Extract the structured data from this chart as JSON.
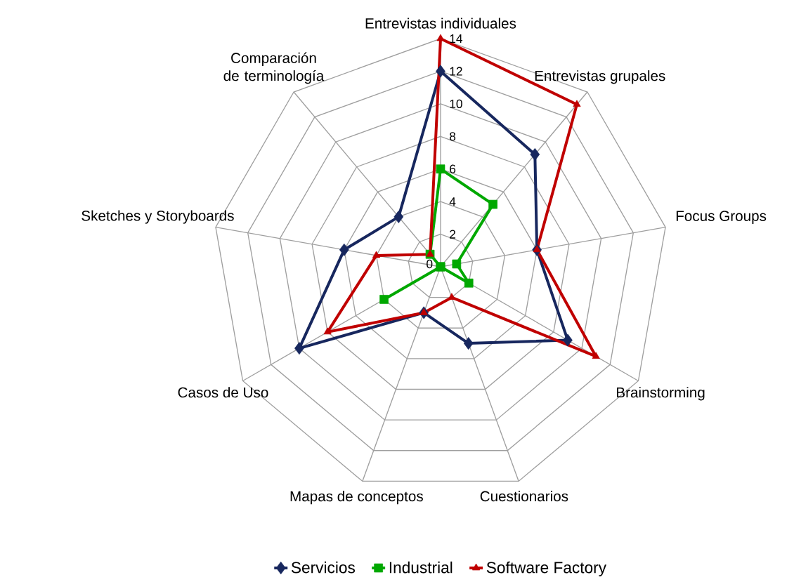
{
  "chart_data": {
    "type": "radar",
    "categories": [
      "Entrevistas individuales",
      "Entrevistas grupales",
      "Focus Groups",
      "Brainstorming",
      "Cuestionarios",
      "Mapas de conceptos",
      "Casos de Uso",
      "Sketches y Storyboards",
      "Comparación de terminología"
    ],
    "series": [
      {
        "name": "Servicios",
        "color": "#17275e",
        "marker": "diamond",
        "values": [
          12,
          9,
          6,
          9,
          5,
          3,
          10,
          6,
          4
        ]
      },
      {
        "name": "Industrial",
        "color": "#00a800",
        "marker": "square",
        "values": [
          6,
          5,
          1,
          2,
          0,
          0,
          4,
          0,
          1
        ]
      },
      {
        "name": "Software Factory",
        "color": "#c00000",
        "marker": "triangle",
        "values": [
          14,
          13,
          6,
          11,
          2,
          3,
          8,
          4,
          1
        ]
      }
    ],
    "ylim": [
      0,
      14
    ],
    "yticks": [
      0,
      2,
      4,
      6,
      8,
      10,
      12,
      14
    ],
    "grid": true,
    "legend": "bottom"
  }
}
